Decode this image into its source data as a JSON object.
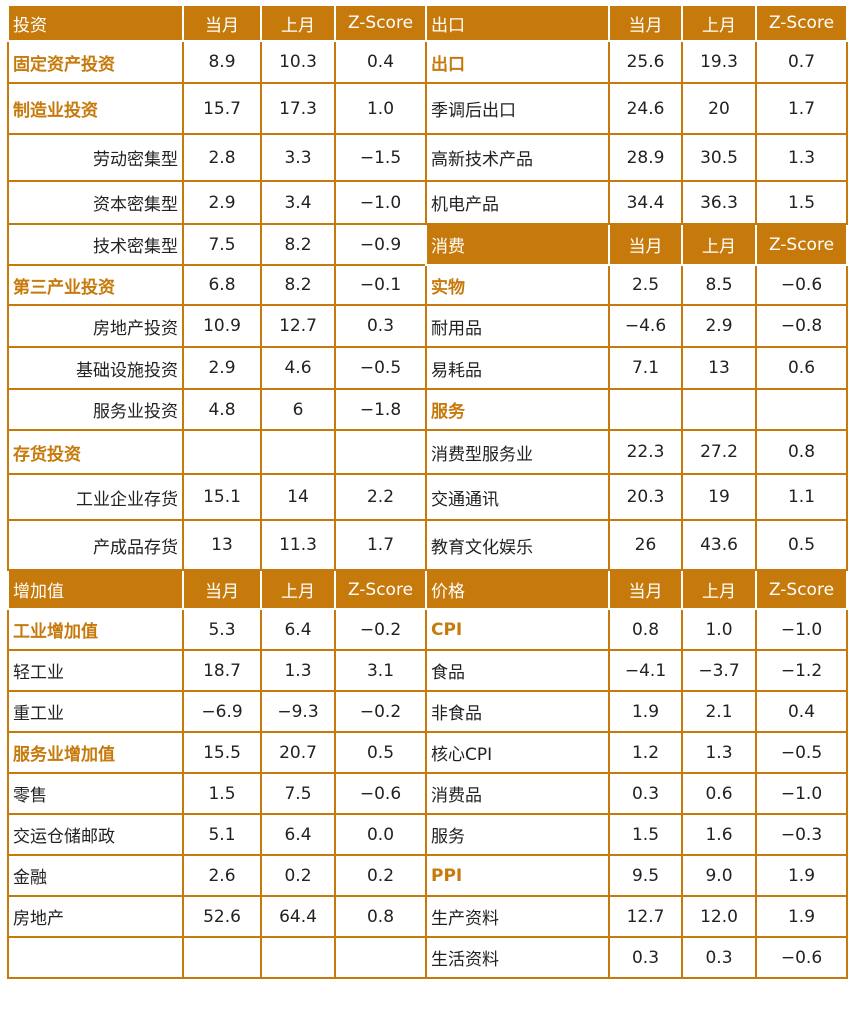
{
  "colors": {
    "accent": "#C77A0C",
    "header_text": "#ffffff",
    "text": "#222222"
  },
  "left": [
    {
      "kind": "header",
      "label": "投资",
      "c1": "当月",
      "c2": "上月",
      "c3": "Z-Score"
    },
    {
      "kind": "highlight",
      "label": "固定资产投资",
      "c1": "8.9",
      "c2": "10.3",
      "c3": "0.4"
    },
    {
      "kind": "highlight",
      "label": "制造业投资",
      "c1": "15.7",
      "c2": "17.3",
      "c3": "1.0"
    },
    {
      "kind": "indent",
      "label": "劳动密集型",
      "c1": "2.8",
      "c2": "3.3",
      "c3": "−1.5"
    },
    {
      "kind": "indent",
      "label": "资本密集型",
      "c1": "2.9",
      "c2": "3.4",
      "c3": "−1.0"
    },
    {
      "kind": "indent",
      "label": "技术密集型",
      "c1": "7.5",
      "c2": "8.2",
      "c3": "−0.9"
    },
    {
      "kind": "highlight",
      "label": "第三产业投资",
      "c1": "6.8",
      "c2": "8.2",
      "c3": "−0.1"
    },
    {
      "kind": "indent",
      "label": "房地产投资",
      "c1": "10.9",
      "c2": "12.7",
      "c3": "0.3"
    },
    {
      "kind": "indent",
      "label": "基础设施投资",
      "c1": "2.9",
      "c2": "4.6",
      "c3": "−0.5"
    },
    {
      "kind": "indent",
      "label": "服务业投资",
      "c1": "4.8",
      "c2": "6",
      "c3": "−1.8"
    },
    {
      "kind": "highlight",
      "label": "存货投资",
      "c1": "",
      "c2": "",
      "c3": ""
    },
    {
      "kind": "indent",
      "label": "工业企业存货",
      "c1": "15.1",
      "c2": "14",
      "c3": "2.2"
    },
    {
      "kind": "indent",
      "label": "产成品存货",
      "c1": "13",
      "c2": "11.3",
      "c3": "1.7"
    },
    {
      "kind": "header",
      "label": "增加值",
      "c1": "当月",
      "c2": "上月",
      "c3": "Z-Score"
    },
    {
      "kind": "highlight",
      "label": "工业增加值",
      "c1": "5.3",
      "c2": "6.4",
      "c3": "−0.2"
    },
    {
      "kind": "plain",
      "label": "轻工业",
      "c1": "18.7",
      "c2": "1.3",
      "c3": "3.1"
    },
    {
      "kind": "plain",
      "label": "重工业",
      "c1": "−6.9",
      "c2": "−9.3",
      "c3": "−0.2"
    },
    {
      "kind": "highlight",
      "label": "服务业增加值",
      "c1": "15.5",
      "c2": "20.7",
      "c3": "0.5"
    },
    {
      "kind": "plain",
      "label": "零售",
      "c1": "1.5",
      "c2": "7.5",
      "c3": "−0.6"
    },
    {
      "kind": "plain",
      "label": "交运仓储邮政",
      "c1": "5.1",
      "c2": "6.4",
      "c3": "0.0"
    },
    {
      "kind": "plain",
      "label": "金融",
      "c1": "2.6",
      "c2": "0.2",
      "c3": "0.2"
    },
    {
      "kind": "plain",
      "label": "房地产",
      "c1": "52.6",
      "c2": "64.4",
      "c3": "0.8"
    },
    {
      "kind": "plain",
      "label": "",
      "c1": "",
      "c2": "",
      "c3": ""
    }
  ],
  "right": [
    {
      "kind": "header",
      "label": "出口",
      "c1": "当月",
      "c2": "上月",
      "c3": "Z-Score"
    },
    {
      "kind": "highlight",
      "label": "出口",
      "c1": "25.6",
      "c2": "19.3",
      "c3": "0.7"
    },
    {
      "kind": "plain",
      "label": "季调后出口",
      "c1": "24.6",
      "c2": "20",
      "c3": "1.7"
    },
    {
      "kind": "plain",
      "label": "高新技术产品",
      "c1": "28.9",
      "c2": "30.5",
      "c3": "1.3"
    },
    {
      "kind": "plain",
      "label": "机电产品",
      "c1": "34.4",
      "c2": "36.3",
      "c3": "1.5"
    },
    {
      "kind": "header",
      "label": "消费",
      "c1": "当月",
      "c2": "上月",
      "c3": "Z-Score"
    },
    {
      "kind": "highlight",
      "label": "实物",
      "c1": "2.5",
      "c2": "8.5",
      "c3": "−0.6"
    },
    {
      "kind": "plain",
      "label": "耐用品",
      "c1": "−4.6",
      "c2": "2.9",
      "c3": "−0.8"
    },
    {
      "kind": "plain",
      "label": "易耗品",
      "c1": "7.1",
      "c2": "13",
      "c3": "0.6"
    },
    {
      "kind": "highlight",
      "label": "服务",
      "c1": "",
      "c2": "",
      "c3": ""
    },
    {
      "kind": "plain",
      "label": "消费型服务业",
      "c1": "22.3",
      "c2": "27.2",
      "c3": "0.8"
    },
    {
      "kind": "plain",
      "label": "交通通讯",
      "c1": "20.3",
      "c2": "19",
      "c3": "1.1"
    },
    {
      "kind": "plain",
      "label": "教育文化娱乐",
      "c1": "26",
      "c2": "43.6",
      "c3": "0.5"
    },
    {
      "kind": "header",
      "label": "价格",
      "c1": "当月",
      "c2": "上月",
      "c3": "Z-Score"
    },
    {
      "kind": "highlight",
      "label": "CPI",
      "c1": "0.8",
      "c2": "1.0",
      "c3": "−1.0"
    },
    {
      "kind": "plain",
      "label": "食品",
      "c1": "−4.1",
      "c2": "−3.7",
      "c3": "−1.2"
    },
    {
      "kind": "plain",
      "label": "非食品",
      "c1": "1.9",
      "c2": "2.1",
      "c3": "0.4"
    },
    {
      "kind": "plain",
      "label": "核心CPI",
      "c1": "1.2",
      "c2": "1.3",
      "c3": "−0.5"
    },
    {
      "kind": "plain",
      "label": "消费品",
      "c1": "0.3",
      "c2": "0.6",
      "c3": "−1.0"
    },
    {
      "kind": "plain",
      "label": "服务",
      "c1": "1.5",
      "c2": "1.6",
      "c3": "−0.3"
    },
    {
      "kind": "highlight",
      "label": "PPI",
      "c1": "9.5",
      "c2": "9.0",
      "c3": "1.9"
    },
    {
      "kind": "plain",
      "label": "生产资料",
      "c1": "12.7",
      "c2": "12.0",
      "c3": "1.9"
    },
    {
      "kind": "plain",
      "label": "生活资料",
      "c1": "0.3",
      "c2": "0.3",
      "c3": "−0.6"
    }
  ]
}
